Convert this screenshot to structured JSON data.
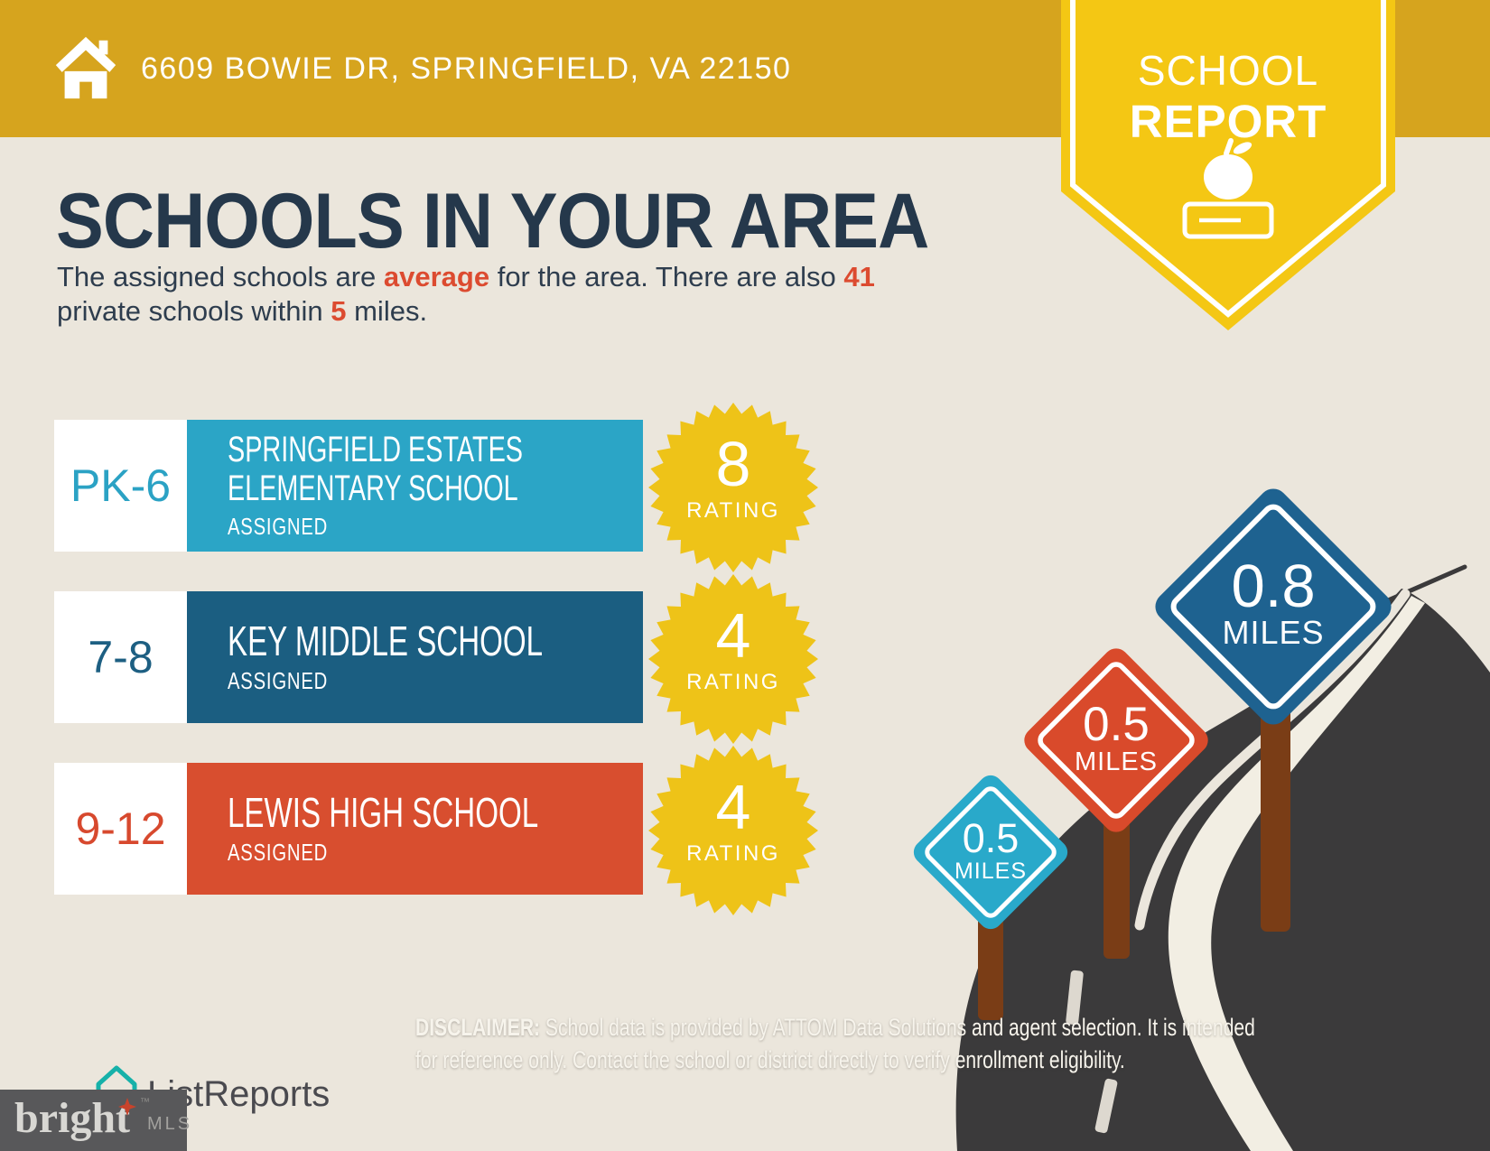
{
  "header": {
    "address": "6609 BOWIE DR, SPRINGFIELD, VA 22150",
    "bar_color": "#D6A41E"
  },
  "badge": {
    "line1": "SCHOOL",
    "line2": "REPORT",
    "color": "#F4C714",
    "icon": "apple-on-book-icon"
  },
  "intro": {
    "title": "SCHOOLS IN YOUR AREA",
    "subtitle_parts": [
      {
        "text": "The assigned schools are "
      },
      {
        "text": "average",
        "highlight": true
      },
      {
        "text": " for the area. There are also "
      },
      {
        "text": "41",
        "highlight": true
      },
      {
        "break": true
      },
      {
        "text": "private schools within "
      },
      {
        "text": "5",
        "highlight": true
      },
      {
        "text": " miles."
      }
    ],
    "accent_color": "#DC4B30",
    "title_color": "#25384B"
  },
  "schools": [
    {
      "grades": "PK-6",
      "name_line1": "SPRINGFIELD ESTATES",
      "name_line2": "ELEMENTARY SCHOOL",
      "status": "ASSIGNED",
      "rating": "8",
      "rating_label": "RATING",
      "color": "#2BA5C6"
    },
    {
      "grades": "7-8",
      "name_line1": "KEY MIDDLE SCHOOL",
      "name_line2": "",
      "status": "ASSIGNED",
      "rating": "4",
      "rating_label": "RATING",
      "color": "#1B5E81"
    },
    {
      "grades": "9-12",
      "name_line1": "LEWIS HIGH SCHOOL",
      "name_line2": "",
      "status": "ASSIGNED",
      "rating": "4",
      "rating_label": "RATING",
      "color": "#D84E2F"
    }
  ],
  "rating_badge_color": "#EEC318",
  "signs": [
    {
      "distance": "0.5",
      "unit": "MILES",
      "color": "#29A9CA"
    },
    {
      "distance": "0.5",
      "unit": "MILES",
      "color": "#D94A2B"
    },
    {
      "distance": "0.8",
      "unit": "MILES",
      "color": "#1E6290"
    }
  ],
  "road_color": "#3B3A3B",
  "post_color": "#7A3D16",
  "disclaimer": {
    "label": "DISCLAIMER:",
    "line1_rest": " School data is provided by ATTOM Data Solutions and agent selection. It is intended",
    "line2": "for reference only. Contact the school or district directly to verify enrollment eligibility."
  },
  "footer": {
    "listreports": "ListReports",
    "bright": "bright",
    "mls": "MLS",
    "tm": "™"
  }
}
